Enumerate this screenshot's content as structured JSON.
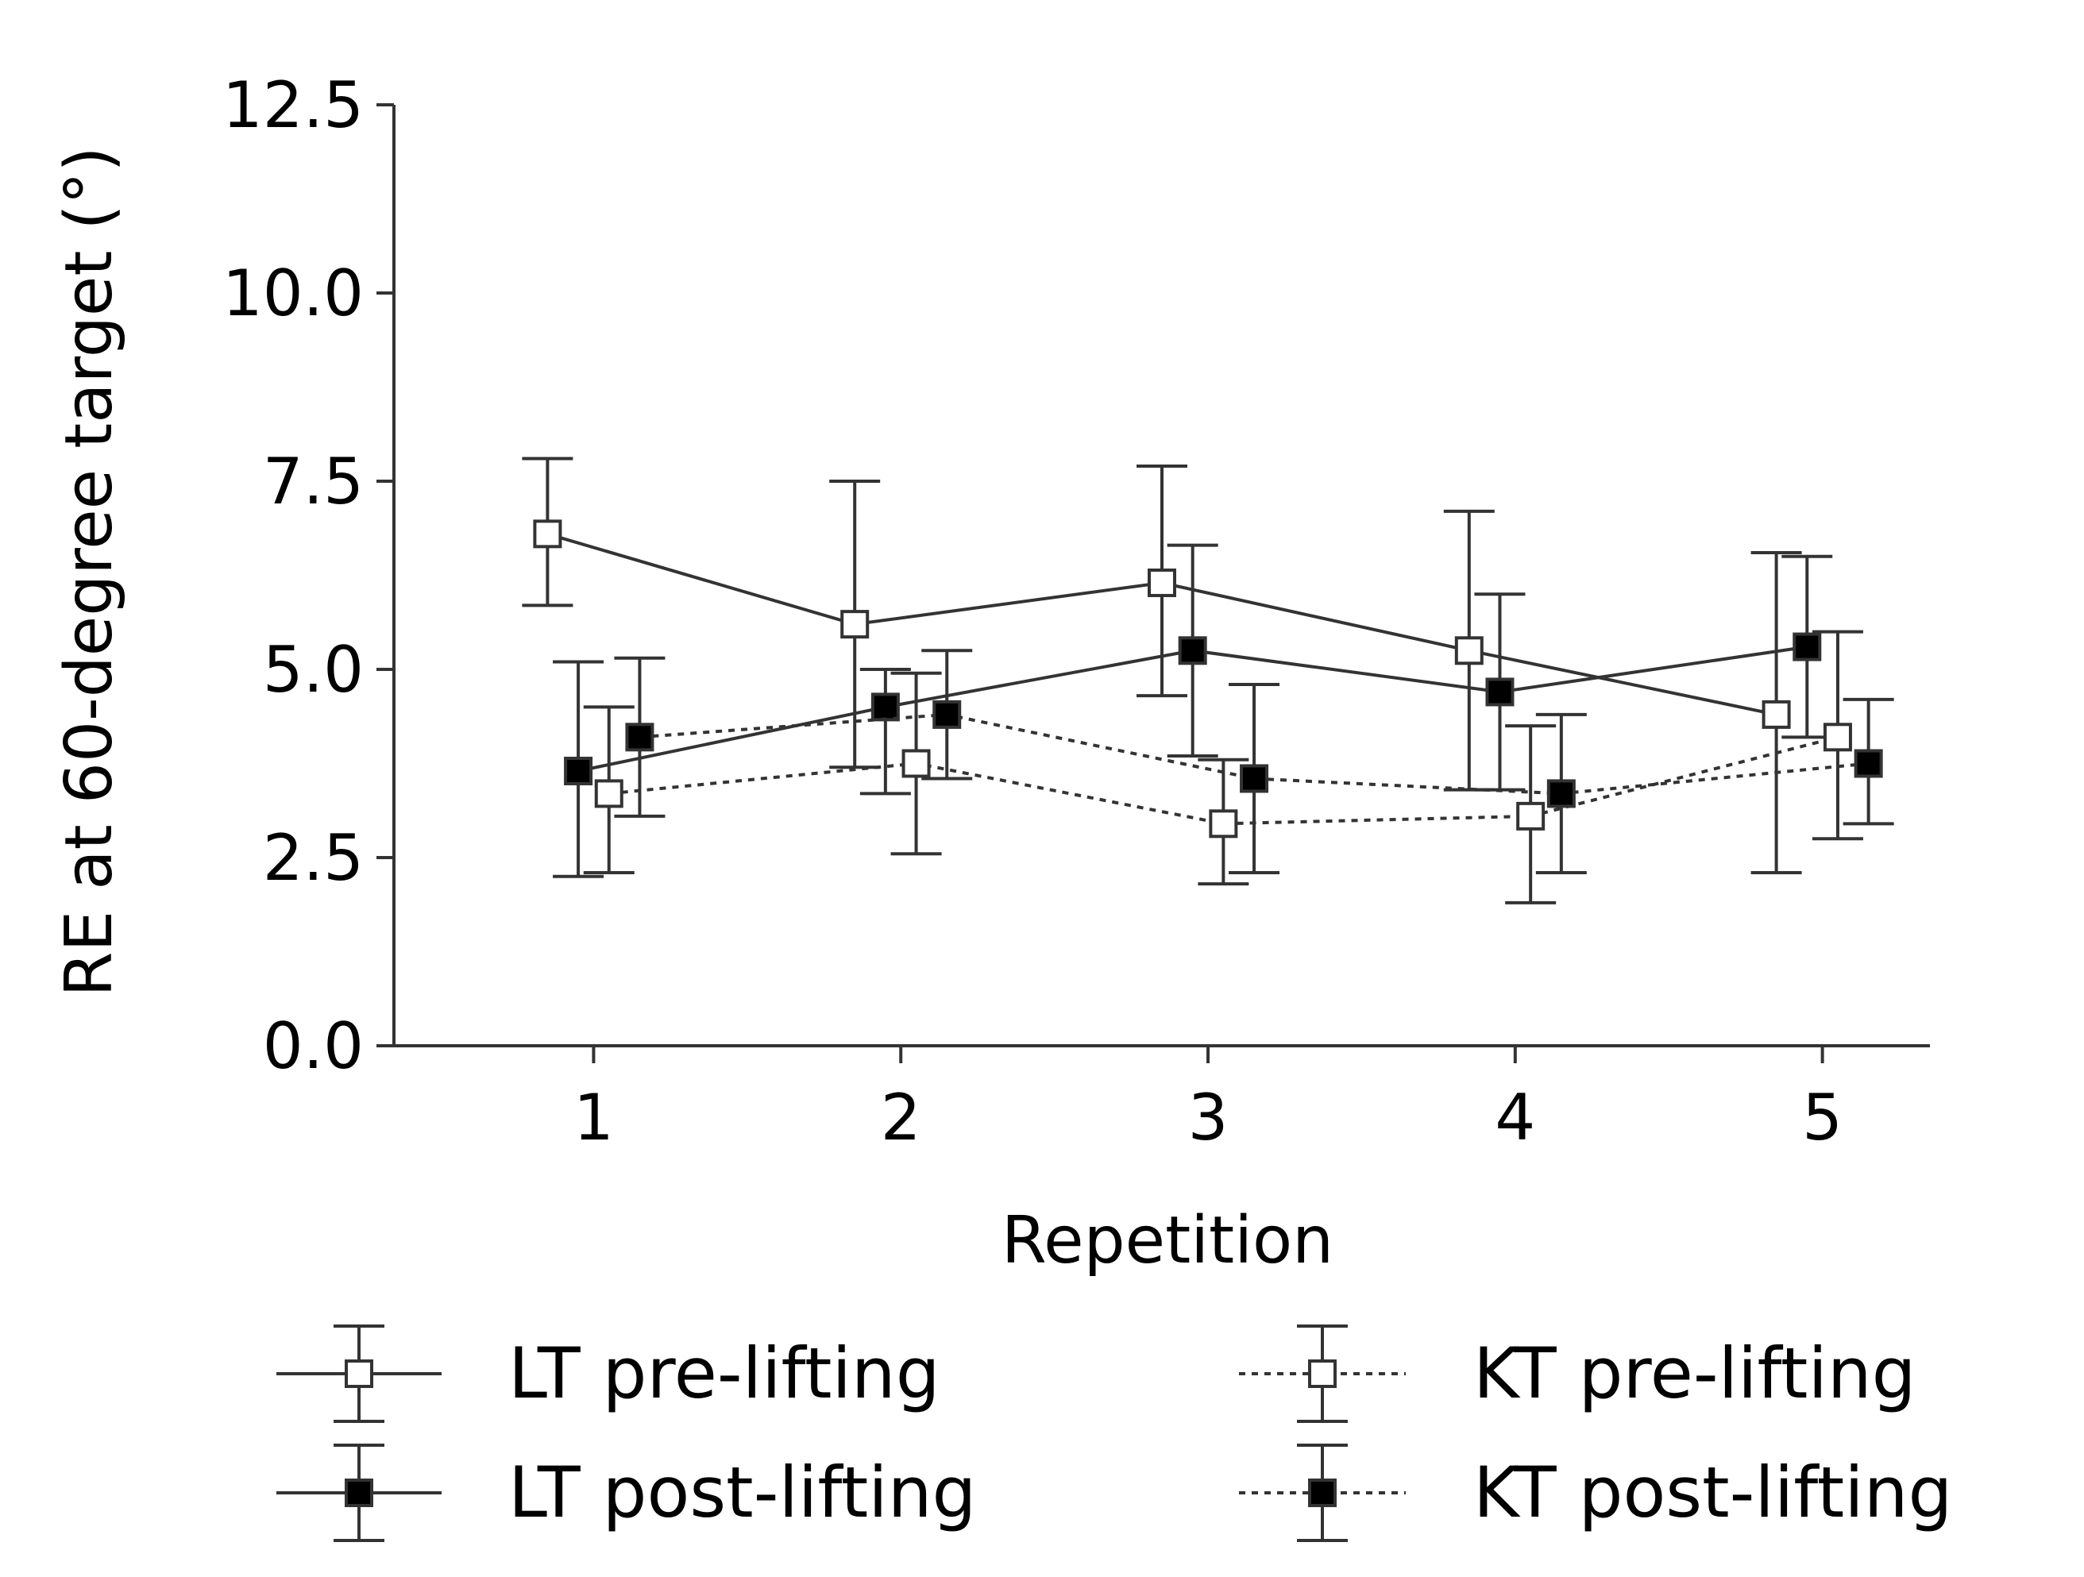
{
  "chart_data": {
    "type": "line",
    "title": "",
    "xlabel": "Repetition",
    "ylabel": "RE at 60-degree target (°)",
    "x": [
      1,
      2,
      3,
      4,
      5
    ],
    "xlim": [
      0.35,
      5.35
    ],
    "ylim": [
      0,
      12.5
    ],
    "xticks": [
      "1",
      "2",
      "3",
      "4",
      "5"
    ],
    "yticks": [
      "0.0",
      "2.5",
      "5.0",
      "7.5",
      "10.0",
      "12.5"
    ],
    "ytick_values": [
      0,
      2.5,
      5.0,
      7.5,
      10.0,
      12.5
    ],
    "grid": false,
    "legend_position": "bottom",
    "series": [
      {
        "name": "LT pre-lifting",
        "offset": -0.15,
        "line": "solid",
        "marker": "open-square",
        "values": [
          6.8,
          5.6,
          6.15,
          5.25,
          4.4
        ],
        "err_low": [
          5.85,
          3.7,
          4.65,
          3.4,
          2.3
        ],
        "err_high": [
          7.8,
          7.5,
          7.7,
          7.1,
          6.55
        ]
      },
      {
        "name": "LT post-lifting",
        "offset": -0.05,
        "line": "solid",
        "marker": "filled-square",
        "values": [
          3.65,
          4.5,
          5.25,
          4.7,
          5.3
        ],
        "err_low": [
          2.25,
          3.35,
          3.85,
          3.4,
          4.1
        ],
        "err_high": [
          5.1,
          5.0,
          6.65,
          6.0,
          6.5
        ]
      },
      {
        "name": "KT pre-lifting",
        "offset": 0.05,
        "line": "dotted",
        "marker": "open-square",
        "values": [
          3.35,
          3.75,
          2.95,
          3.05,
          4.1
        ],
        "err_low": [
          2.3,
          2.55,
          2.15,
          1.9,
          2.75
        ],
        "err_high": [
          4.5,
          4.95,
          3.8,
          4.25,
          5.5
        ]
      },
      {
        "name": "KT post-lifting",
        "offset": 0.15,
        "line": "dotted",
        "marker": "filled-square",
        "values": [
          4.1,
          4.4,
          3.55,
          3.35,
          3.75
        ],
        "err_low": [
          3.05,
          3.55,
          2.3,
          2.3,
          2.95
        ],
        "err_high": [
          5.15,
          5.25,
          4.8,
          4.4,
          4.6
        ]
      }
    ]
  }
}
